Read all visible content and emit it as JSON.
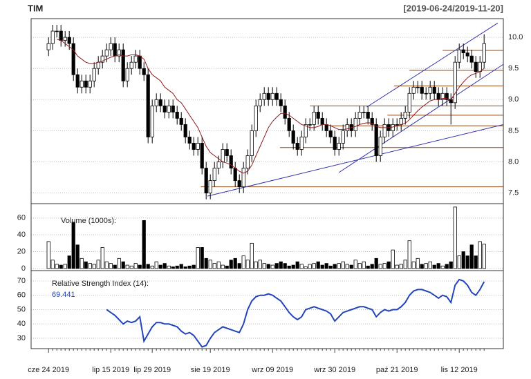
{
  "title": "TIM",
  "date_range": "[2019-06-24/2019-11-20]",
  "chart_data": {
    "type": "candlestick",
    "categories": [
      "cze 24 2019",
      null,
      null,
      null,
      null,
      null,
      null,
      null,
      null,
      null,
      null,
      null,
      null,
      null,
      null,
      "lip 15 2019",
      null,
      null,
      null,
      null,
      null,
      null,
      null,
      null,
      null,
      "lip 29 2019",
      null,
      null,
      null,
      null,
      null,
      null,
      null,
      null,
      null,
      null,
      null,
      null,
      null,
      "sie 19 2019",
      null,
      null,
      null,
      null,
      null,
      null,
      null,
      null,
      null,
      null,
      null,
      null,
      null,
      null,
      "wrz 09 2019",
      null,
      null,
      null,
      null,
      null,
      null,
      null,
      null,
      null,
      null,
      null,
      null,
      null,
      null,
      "wrz 30 2019",
      null,
      null,
      null,
      null,
      null,
      null,
      null,
      null,
      null,
      null,
      null,
      null,
      null,
      null,
      "paź 21 2019",
      null,
      null,
      null,
      null,
      null,
      null,
      null,
      null,
      null,
      null,
      null,
      null,
      null,
      null,
      "lis 12 2019",
      null,
      null,
      null,
      null,
      null,
      null
    ],
    "open": [
      9.8,
      9.9,
      10.1,
      10.1,
      9.95,
      10.0,
      9.9,
      9.4,
      9.2,
      9.3,
      9.2,
      9.3,
      9.5,
      9.6,
      9.7,
      9.8,
      9.9,
      9.7,
      9.8,
      9.3,
      9.5,
      9.6,
      9.7,
      9.5,
      9.4,
      8.4,
      8.9,
      9.0,
      8.9,
      8.8,
      8.9,
      8.8,
      8.7,
      8.6,
      8.4,
      8.3,
      8.2,
      8.3,
      7.9,
      7.5,
      7.7,
      7.9,
      8.0,
      8.2,
      8.1,
      7.9,
      7.7,
      7.6,
      7.9,
      8.1,
      8.5,
      8.9,
      9.0,
      9.1,
      9.0,
      9.1,
      9.0,
      8.9,
      8.7,
      8.5,
      8.3,
      8.2,
      8.4,
      8.6,
      8.6,
      8.8,
      8.7,
      8.6,
      8.5,
      8.4,
      8.2,
      8.3,
      8.5,
      8.6,
      8.5,
      8.7,
      8.8,
      8.8,
      8.7,
      8.6,
      8.1,
      8.4,
      8.6,
      8.5,
      8.6,
      8.6,
      8.7,
      8.8,
      9.1,
      9.2,
      9.2,
      9.1,
      9.1,
      9.2,
      9.1,
      9.0,
      9.1,
      9.0,
      8.95,
      9.6,
      9.8,
      9.75,
      9.7,
      9.6,
      9.45,
      9.6
    ],
    "high": [
      10.0,
      10.2,
      10.2,
      10.2,
      10.1,
      10.1,
      10.0,
      9.5,
      9.4,
      9.4,
      9.4,
      9.6,
      9.7,
      9.8,
      9.9,
      10.0,
      10.0,
      9.9,
      9.9,
      9.6,
      9.7,
      9.8,
      9.8,
      9.6,
      9.5,
      9.0,
      9.1,
      9.1,
      9.0,
      9.0,
      9.0,
      8.9,
      8.8,
      8.7,
      8.5,
      8.4,
      8.4,
      8.4,
      8.0,
      7.8,
      8.0,
      8.1,
      8.3,
      8.3,
      8.2,
      8.0,
      7.8,
      8.0,
      8.2,
      8.6,
      9.0,
      9.1,
      9.2,
      9.2,
      9.2,
      9.2,
      9.1,
      9.0,
      8.8,
      8.6,
      8.4,
      8.5,
      8.7,
      8.7,
      8.9,
      8.9,
      8.8,
      8.7,
      8.6,
      8.5,
      8.4,
      8.6,
      8.7,
      8.7,
      8.8,
      8.9,
      8.9,
      8.9,
      8.8,
      8.7,
      8.5,
      8.7,
      8.7,
      8.7,
      8.7,
      8.8,
      8.9,
      9.2,
      9.3,
      9.3,
      9.3,
      9.2,
      9.3,
      9.3,
      9.2,
      9.2,
      9.2,
      9.1,
      9.7,
      9.9,
      9.9,
      9.85,
      9.8,
      9.7,
      9.7,
      10.05
    ],
    "low": [
      9.7,
      9.8,
      10.0,
      9.85,
      9.85,
      9.8,
      9.3,
      9.1,
      9.1,
      9.1,
      9.1,
      9.2,
      9.4,
      9.5,
      9.6,
      9.7,
      9.6,
      9.6,
      9.2,
      9.2,
      9.4,
      9.5,
      9.4,
      9.3,
      8.3,
      8.3,
      8.8,
      8.8,
      8.7,
      8.7,
      8.7,
      8.6,
      8.5,
      8.3,
      8.2,
      8.1,
      8.1,
      7.8,
      7.4,
      7.4,
      7.6,
      7.8,
      7.9,
      8.0,
      7.8,
      7.6,
      7.5,
      7.5,
      7.8,
      8.0,
      8.4,
      8.8,
      8.9,
      8.9,
      8.9,
      8.9,
      8.8,
      8.6,
      8.4,
      8.2,
      8.1,
      8.1,
      8.3,
      8.5,
      8.5,
      8.6,
      8.5,
      8.4,
      8.3,
      8.1,
      8.1,
      8.2,
      8.4,
      8.4,
      8.4,
      8.6,
      8.7,
      8.6,
      8.5,
      8.0,
      8.0,
      8.3,
      8.4,
      8.4,
      8.5,
      8.5,
      8.6,
      8.7,
      9.0,
      9.1,
      9.0,
      9.0,
      9.0,
      9.0,
      8.9,
      8.9,
      8.9,
      8.6,
      8.85,
      9.5,
      9.65,
      9.6,
      9.5,
      9.35,
      9.35,
      9.5
    ],
    "close": [
      9.9,
      10.1,
      10.1,
      9.95,
      10.0,
      9.9,
      9.4,
      9.2,
      9.3,
      9.2,
      9.3,
      9.5,
      9.6,
      9.7,
      9.8,
      9.9,
      9.7,
      9.8,
      9.3,
      9.5,
      9.6,
      9.7,
      9.5,
      9.4,
      8.4,
      8.9,
      9.0,
      8.9,
      8.8,
      8.9,
      8.8,
      8.7,
      8.6,
      8.4,
      8.3,
      8.2,
      8.3,
      7.9,
      7.5,
      7.7,
      7.9,
      8.0,
      8.2,
      8.1,
      7.9,
      7.7,
      7.6,
      7.9,
      8.1,
      8.5,
      8.9,
      9.0,
      9.1,
      9.0,
      9.1,
      9.0,
      8.9,
      8.7,
      8.5,
      8.3,
      8.2,
      8.4,
      8.6,
      8.6,
      8.8,
      8.7,
      8.6,
      8.5,
      8.4,
      8.2,
      8.3,
      8.5,
      8.6,
      8.5,
      8.7,
      8.8,
      8.8,
      8.7,
      8.6,
      8.1,
      8.4,
      8.6,
      8.5,
      8.6,
      8.6,
      8.7,
      8.8,
      9.1,
      9.2,
      9.2,
      9.1,
      9.1,
      9.2,
      9.1,
      9.0,
      9.1,
      9.0,
      8.95,
      9.6,
      9.8,
      9.75,
      9.7,
      9.6,
      9.45,
      9.6,
      9.9
    ],
    "up_color": "#ffffff",
    "down_color": "#000000",
    "ylim": [
      7.33,
      10.3
    ],
    "yticks": [
      7.5,
      {
        "value": 8,
        "label": "8.0"
      },
      8.5,
      {
        "value": 9,
        "label": "9.0"
      },
      9.5,
      {
        "value": 10,
        "label": "10.0"
      }
    ],
    "grid": true,
    "ma": {
      "color": "#8b1a1a",
      "values": [
        null,
        null,
        9.97,
        9.95,
        9.9,
        9.85,
        9.8,
        9.7,
        9.65,
        9.6,
        9.58,
        9.58,
        9.6,
        9.62,
        9.65,
        9.68,
        9.7,
        9.72,
        9.7,
        9.7,
        9.72,
        9.72,
        9.7,
        9.65,
        9.5,
        9.4,
        9.35,
        9.3,
        9.2,
        9.15,
        9.1,
        9.0,
        8.95,
        8.85,
        8.75,
        8.65,
        8.55,
        8.4,
        8.25,
        8.15,
        8.1,
        8.05,
        8.0,
        7.98,
        7.95,
        7.9,
        7.85,
        7.82,
        7.85,
        7.95,
        8.1,
        8.25,
        8.4,
        8.55,
        8.65,
        8.72,
        8.78,
        8.78,
        8.75,
        8.7,
        8.65,
        8.6,
        8.58,
        8.55,
        8.55,
        8.57,
        8.6,
        8.6,
        8.58,
        8.55,
        8.52,
        8.52,
        8.53,
        8.55,
        8.57,
        8.6,
        8.62,
        8.63,
        8.62,
        8.57,
        8.55,
        8.55,
        8.55,
        8.56,
        8.58,
        8.6,
        8.62,
        8.68,
        8.75,
        8.82,
        8.88,
        8.93,
        8.98,
        9.0,
        9.0,
        9.02,
        9.02,
        9.0,
        9.1,
        9.2,
        9.28,
        9.35,
        9.4,
        9.42,
        9.45,
        9.5
      ]
    },
    "trendlines": [
      {
        "color": "#3333aa",
        "x": [
          38.3,
          109.7
        ],
        "y": [
          7.45,
          8.6
        ]
      },
      {
        "color": "#3333aa",
        "x": [
          70,
          109.7
        ],
        "y": [
          7.83,
          9.57
        ]
      },
      {
        "color": "#3333aa",
        "x": [
          76.7,
          108.3
        ],
        "y": [
          8.88,
          10.23
        ]
      }
    ],
    "levels": [
      {
        "color": "#8b4513",
        "x": 36.7,
        "y": 7.6
      },
      {
        "color": "#8b4513",
        "x": 55.8,
        "y": 8.23
      },
      {
        "color": "#8b4513",
        "x": 68,
        "y": 8.58
      },
      {
        "color": "#8b4513",
        "x": 81.7,
        "y": 8.75
      },
      {
        "color": "#8b4513",
        "x": 63,
        "y": 8.9
      },
      {
        "color": "#8b4513",
        "x": 83.3,
        "y": 9.22
      },
      {
        "color": "#8b4513",
        "x": 87,
        "y": 9.47
      },
      {
        "color": "#8b4513",
        "x": 95,
        "y": 9.79
      }
    ],
    "volume": {
      "label": "Volume (1000s):",
      "values": [
        32,
        10,
        5,
        4,
        5,
        15,
        55,
        28,
        12,
        8,
        6,
        5,
        10,
        25,
        8,
        6,
        4,
        12,
        8,
        4,
        3,
        6,
        4,
        57,
        5,
        3,
        8,
        4,
        6,
        3,
        2,
        3,
        5,
        2,
        3,
        4,
        25,
        25,
        12,
        10,
        6,
        8,
        4,
        3,
        10,
        12,
        6,
        15,
        10,
        30,
        8,
        10,
        6,
        5,
        4,
        6,
        8,
        6,
        3,
        4,
        8,
        5,
        2,
        5,
        6,
        8,
        4,
        6,
        3,
        5,
        6,
        8,
        5,
        4,
        10,
        6,
        8,
        3,
        5,
        12,
        5,
        6,
        8,
        22,
        4,
        5,
        10,
        33,
        8,
        12,
        5,
        6,
        8,
        4,
        6,
        3,
        5,
        8,
        73,
        15,
        20,
        15,
        28,
        15,
        32,
        29
      ],
      "ylim": [
        -2.5,
        77
      ],
      "yticks": [
        0,
        20,
        40,
        60
      ]
    },
    "rsi": {
      "label": "Relative Strength Index (14):",
      "color": "#2244bb",
      "values": [
        null,
        null,
        null,
        null,
        null,
        null,
        null,
        null,
        null,
        null,
        null,
        null,
        null,
        null,
        50,
        48,
        46,
        43,
        40,
        42,
        41,
        42,
        45,
        28,
        33,
        38,
        41,
        41,
        40,
        40,
        39,
        38,
        35,
        33,
        34,
        32,
        28,
        24,
        25,
        30,
        34,
        36,
        38,
        37,
        36,
        35,
        34,
        40,
        50,
        56,
        59,
        60,
        60,
        61,
        60,
        58,
        56,
        52,
        48,
        45,
        43,
        45,
        50,
        51,
        52,
        51,
        50,
        49,
        47,
        42,
        45,
        48,
        49,
        50,
        51,
        52,
        52,
        51,
        50,
        45,
        48,
        50,
        49,
        50,
        50,
        52,
        55,
        60,
        63,
        64,
        64,
        63,
        62,
        60,
        58,
        60,
        59,
        55,
        67,
        71,
        70,
        67,
        62,
        60,
        64,
        69.441
      ],
      "ylim": [
        22.8,
        77.2
      ],
      "yticks": [
        30,
        40,
        50,
        60,
        70
      ]
    }
  }
}
